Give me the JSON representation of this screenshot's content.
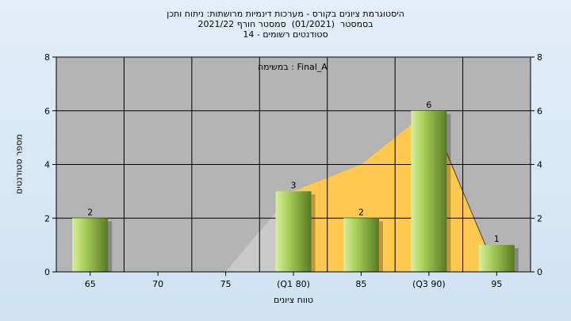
{
  "title_lines": [
    "היסטוגרמת ציונים בקורס - מערכות דינמיות מרושתות: ניתוח ותכן",
    "בסמסטר  (01/2021)  סמסטר חורף 2021/22",
    "סטודנטים רשומים - 14"
  ],
  "annotation": "במשימה : Final_A",
  "colors": {
    "plot_bg": "#b4b4b4",
    "grid": "#000000",
    "bar_light": "#d8ef9c",
    "bar_dark": "#567a22",
    "area_fill": "#ffc84f",
    "area_grey": "#c9c9c9"
  },
  "chart_data": {
    "type": "bar",
    "xlabel": "טווח ציונים",
    "ylabel": "מספר סטודנטים",
    "categories": [
      "65",
      "70",
      "75",
      "(Q1 80)",
      "85",
      "(Q3 90)",
      "95"
    ],
    "values": [
      2,
      0,
      0,
      3,
      2,
      6,
      1
    ],
    "value_labels": [
      "2",
      "",
      "",
      "3",
      "2",
      "6",
      "1"
    ],
    "ylim": [
      0,
      8
    ],
    "yticks": [
      0,
      2,
      4,
      6,
      8
    ],
    "grid": true,
    "area_series": [
      {
        "x": "75",
        "y": 0
      },
      {
        "x": "(Q1 80)",
        "y": 3
      },
      {
        "x": "85",
        "y": 4
      },
      {
        "x": "(Q3 90)",
        "y": 6
      },
      {
        "x": "95",
        "y": 0
      }
    ]
  }
}
